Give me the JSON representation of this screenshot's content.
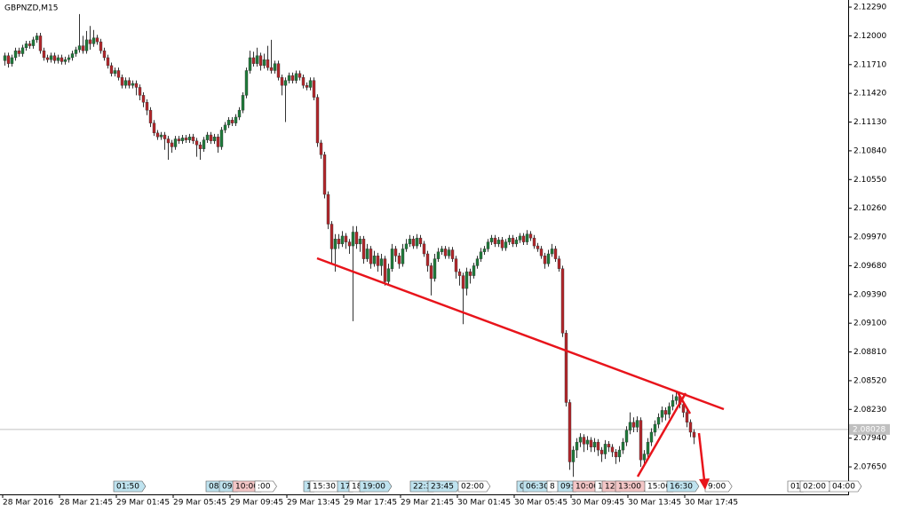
{
  "chart_data": {
    "type": "candlestick",
    "title": "GBPNZD,M15",
    "up_color": "#1e7b3a",
    "down_color": "#b3262a",
    "ylim": [
      2.07525,
      2.12353
    ],
    "yticks": [
      {
        "value": 2.1229,
        "label": "2.12290"
      },
      {
        "value": 2.12,
        "label": "2.12000"
      },
      {
        "value": 2.1171,
        "label": "2.11710"
      },
      {
        "value": 2.1142,
        "label": "2.11420"
      },
      {
        "value": 2.1113,
        "label": "2.11130"
      },
      {
        "value": 2.1084,
        "label": "2.10840"
      },
      {
        "value": 2.1055,
        "label": "2.10550"
      },
      {
        "value": 2.1026,
        "label": "2.10260"
      },
      {
        "value": 2.0997,
        "label": "2.09970"
      },
      {
        "value": 2.0968,
        "label": "2.09680"
      },
      {
        "value": 2.0939,
        "label": "2.09390"
      },
      {
        "value": 2.091,
        "label": "2.09100"
      },
      {
        "value": 2.0881,
        "label": "2.08810"
      },
      {
        "value": 2.0852,
        "label": "2.08520"
      },
      {
        "value": 2.0823,
        "label": "2.08230"
      },
      {
        "value": 2.0794,
        "label": "2.07940"
      },
      {
        "value": 2.0765,
        "label": "2.07650"
      }
    ],
    "xticks": [
      {
        "value": 0,
        "label": "28 Mar 2016"
      },
      {
        "value": 16,
        "label": "28 Mar 21:45"
      },
      {
        "value": 32,
        "label": "29 Mar 01:45"
      },
      {
        "value": 48,
        "label": "29 Mar 05:45"
      },
      {
        "value": 64,
        "label": "29 Mar 09:45"
      },
      {
        "value": 80,
        "label": "29 Mar 13:45"
      },
      {
        "value": 96,
        "label": "29 Mar 17:45"
      },
      {
        "value": 112,
        "label": "29 Mar 21:45"
      },
      {
        "value": 128,
        "label": "30 Mar 01:45"
      },
      {
        "value": 144,
        "label": "30 Mar 05:45"
      },
      {
        "value": 160,
        "label": "30 Mar 09:45"
      },
      {
        "value": 176,
        "label": "30 Mar 13:45"
      },
      {
        "value": 192,
        "label": "30 Mar 17:45"
      }
    ],
    "current_price": {
      "value": 2.08028,
      "label": "2.08028"
    },
    "event_tags": [
      {
        "label": "01:50",
        "color": "#bfe3ef"
      },
      {
        "label": "08:",
        "color": "#bfe3ef"
      },
      {
        "label": "09:",
        "color": "#bfe3ef"
      },
      {
        "label": "10:00",
        "color": "#f3c6c6"
      },
      {
        "label": ":00",
        "color": "#ffffff"
      },
      {
        "label": "1",
        "color": "#bfe3ef"
      },
      {
        "label": "15:30",
        "color": "#ffffff"
      },
      {
        "label": "17",
        "color": "#bfe3ef"
      },
      {
        "label": "18",
        "color": "#ffffff"
      },
      {
        "label": "19:00",
        "color": "#bfe3ef"
      },
      {
        "label": "22:3",
        "color": "#bfe3ef"
      },
      {
        "label": "23:45",
        "color": "#bfe3ef"
      },
      {
        "label": "02:00",
        "color": "#ffffff"
      },
      {
        "label": "0",
        "color": "#bfe3ef"
      },
      {
        "label": "06:30",
        "color": "#bfe3ef"
      },
      {
        "label": "8",
        "color": "#ffffff"
      },
      {
        "label": "09:",
        "color": "#bfe3ef"
      },
      {
        "label": "10:00",
        "color": "#f3c6c6"
      },
      {
        "label": "1",
        "color": "#ffffff"
      },
      {
        "label": "12:",
        "color": "#f3c6c6"
      },
      {
        "label": "13:00",
        "color": "#f3c6c6"
      },
      {
        "label": "15:00",
        "color": "#ffffff"
      },
      {
        "label": "16:30",
        "color": "#bfe3ef"
      },
      {
        "label": "9:00",
        "color": "#ffffff"
      },
      {
        "label": "01",
        "color": "#ffffff"
      },
      {
        "label": "02:00",
        "color": "#ffffff"
      },
      {
        "label": "04:00",
        "color": "#ffffff"
      }
    ],
    "candles": [
      [
        2.1175,
        2.1183,
        2.117,
        2.118
      ],
      [
        2.118,
        2.1183,
        2.1168,
        2.1172
      ],
      [
        2.1172,
        2.1181,
        2.1169,
        2.1178
      ],
      [
        2.1178,
        2.1188,
        2.1175,
        2.1185
      ],
      [
        2.1185,
        2.1188,
        2.1179,
        2.1182
      ],
      [
        2.1182,
        2.1191,
        2.1179,
        2.1188
      ],
      [
        2.1188,
        2.1195,
        2.1185,
        2.1192
      ],
      [
        2.1192,
        2.1195,
        2.1187,
        2.119
      ],
      [
        2.119,
        2.1199,
        2.1187,
        2.1196
      ],
      [
        2.1196,
        2.1203,
        2.1193,
        2.12
      ],
      [
        2.12,
        2.1203,
        2.1182,
        2.1185
      ],
      [
        2.1185,
        2.1188,
        2.1175,
        2.1178
      ],
      [
        2.1178,
        2.1181,
        2.1173,
        2.1176
      ],
      [
        2.1176,
        2.1183,
        2.1173,
        2.118
      ],
      [
        2.118,
        2.1183,
        2.1172,
        2.1175
      ],
      [
        2.1175,
        2.1181,
        2.1172,
        2.1178
      ],
      [
        2.1178,
        2.1181,
        2.1171,
        2.1174
      ],
      [
        2.1174,
        2.1179,
        2.1171,
        2.1176
      ],
      [
        2.1176,
        2.1181,
        2.1173,
        2.1178
      ],
      [
        2.1178,
        2.1185,
        2.1175,
        2.1182
      ],
      [
        2.1182,
        2.1189,
        2.1179,
        2.1186
      ],
      [
        2.1186,
        2.1222,
        2.1183,
        2.119
      ],
      [
        2.119,
        2.12,
        2.1182,
        2.1185
      ],
      [
        2.1185,
        2.1205,
        2.1182,
        2.1196
      ],
      [
        2.1196,
        2.121,
        2.1186,
        2.1192
      ],
      [
        2.1192,
        2.1206,
        2.1189,
        2.1198
      ],
      [
        2.1198,
        2.1201,
        2.1191,
        2.1194
      ],
      [
        2.1194,
        2.1197,
        2.1182,
        2.1185
      ],
      [
        2.1185,
        2.1188,
        2.1175,
        2.1178
      ],
      [
        2.1178,
        2.1181,
        2.1167,
        2.117
      ],
      [
        2.117,
        2.1173,
        2.1159,
        2.1162
      ],
      [
        2.1162,
        2.1168,
        2.1159,
        2.1165
      ],
      [
        2.1165,
        2.1168,
        2.1155,
        2.1158
      ],
      [
        2.1158,
        2.1161,
        2.1147,
        2.115
      ],
      [
        2.115,
        2.1158,
        2.1147,
        2.1155
      ],
      [
        2.1155,
        2.1158,
        2.1147,
        2.115
      ],
      [
        2.115,
        2.1155,
        2.1147,
        2.1152
      ],
      [
        2.1152,
        2.1155,
        2.114,
        2.1148
      ],
      [
        2.1148,
        2.1151,
        2.1135,
        2.114
      ],
      [
        2.114,
        2.1143,
        2.1128,
        2.1133
      ],
      [
        2.1133,
        2.1136,
        2.112,
        2.1125
      ],
      [
        2.1125,
        2.1128,
        2.1108,
        2.1112
      ],
      [
        2.1112,
        2.1115,
        2.1099,
        2.1102
      ],
      [
        2.1102,
        2.1105,
        2.1095,
        2.1098
      ],
      [
        2.1098,
        2.1103,
        2.1095,
        2.11
      ],
      [
        2.11,
        2.1103,
        2.1085,
        2.1096
      ],
      [
        2.1096,
        2.1099,
        2.1075,
        2.1092
      ],
      [
        2.1092,
        2.1095,
        2.1082,
        2.1088
      ],
      [
        2.1088,
        2.1099,
        2.1085,
        2.1096
      ],
      [
        2.1096,
        2.1099,
        2.1091,
        2.1094
      ],
      [
        2.1094,
        2.11,
        2.1091,
        2.1097
      ],
      [
        2.1097,
        2.11,
        2.1092,
        2.1095
      ],
      [
        2.1095,
        2.1101,
        2.1092,
        2.1098
      ],
      [
        2.1098,
        2.1101,
        2.1091,
        2.1094
      ],
      [
        2.1094,
        2.1097,
        2.1078,
        2.109
      ],
      [
        2.109,
        2.1093,
        2.1075,
        2.1086
      ],
      [
        2.1086,
        2.1098,
        2.1083,
        2.1095
      ],
      [
        2.1095,
        2.1103,
        2.1092,
        2.11
      ],
      [
        2.11,
        2.1103,
        2.1091,
        2.1094
      ],
      [
        2.1094,
        2.1101,
        2.1091,
        2.1098
      ],
      [
        2.1098,
        2.1101,
        2.1082,
        2.1088
      ],
      [
        2.1088,
        2.1108,
        2.1085,
        2.1105
      ],
      [
        2.1105,
        2.1113,
        2.1102,
        2.111
      ],
      [
        2.111,
        2.1118,
        2.1107,
        2.1115
      ],
      [
        2.1115,
        2.1118,
        2.1109,
        2.1112
      ],
      [
        2.1112,
        2.1121,
        2.1109,
        2.1118
      ],
      [
        2.1118,
        2.1128,
        2.1115,
        2.1125
      ],
      [
        2.1125,
        2.1143,
        2.1122,
        2.114
      ],
      [
        2.114,
        2.1168,
        2.1137,
        2.1165
      ],
      [
        2.1165,
        2.1185,
        2.1162,
        2.1178
      ],
      [
        2.1178,
        2.1184,
        2.1169,
        2.1172
      ],
      [
        2.1172,
        2.1188,
        2.1169,
        2.118
      ],
      [
        2.118,
        2.1183,
        2.1165,
        2.117
      ],
      [
        2.117,
        2.1182,
        2.1167,
        2.1176
      ],
      [
        2.1176,
        2.119,
        2.1165,
        2.1168
      ],
      [
        2.1168,
        2.1196,
        2.1162,
        2.1165
      ],
      [
        2.1165,
        2.1175,
        2.1162,
        2.1172
      ],
      [
        2.1172,
        2.1175,
        2.1155,
        2.1158
      ],
      [
        2.1158,
        2.1161,
        2.114,
        2.115
      ],
      [
        2.115,
        2.1158,
        2.1113,
        2.1155
      ],
      [
        2.1155,
        2.1163,
        2.1152,
        2.116
      ],
      [
        2.116,
        2.1163,
        2.1152,
        2.1155
      ],
      [
        2.1155,
        2.1165,
        2.1152,
        2.1162
      ],
      [
        2.1162,
        2.1165,
        2.1155,
        2.1158
      ],
      [
        2.1158,
        2.1161,
        2.1147,
        2.115
      ],
      [
        2.115,
        2.1153,
        2.1145,
        2.1148
      ],
      [
        2.1148,
        2.1158,
        2.1145,
        2.1155
      ],
      [
        2.1155,
        2.1158,
        2.1135,
        2.1138
      ],
      [
        2.1138,
        2.1141,
        2.1088,
        2.1092
      ],
      [
        2.1092,
        2.1095,
        2.1076,
        2.108
      ],
      [
        2.108,
        2.1083,
        2.1036,
        2.104
      ],
      [
        2.104,
        2.1043,
        2.1005,
        2.101
      ],
      [
        2.101,
        2.1013,
        2.097,
        2.0985
      ],
      [
        2.0985,
        2.1,
        2.0962,
        2.0995
      ],
      [
        2.0995,
        2.1,
        2.0985,
        2.099
      ],
      [
        2.099,
        2.1003,
        2.0987,
        2.0998
      ],
      [
        2.0998,
        2.1001,
        2.0985,
        2.0992
      ],
      [
        2.0992,
        2.0995,
        2.098,
        2.0988
      ],
      [
        2.0988,
        2.1008,
        2.0912,
        2.1002
      ],
      [
        2.1002,
        2.1008,
        2.0985,
        2.099
      ],
      [
        2.099,
        2.0998,
        2.0982,
        2.0995
      ],
      [
        2.0995,
        2.0998,
        2.097,
        2.0975
      ],
      [
        2.0975,
        2.099,
        2.0972,
        2.0985
      ],
      [
        2.0985,
        2.0988,
        2.0965,
        2.097
      ],
      [
        2.097,
        2.0983,
        2.0967,
        2.0978
      ],
      [
        2.0978,
        2.0981,
        2.0962,
        2.0968
      ],
      [
        2.0968,
        2.098,
        2.0958,
        2.0975
      ],
      [
        2.0975,
        2.0978,
        2.0948,
        2.0952
      ],
      [
        2.0952,
        2.097,
        2.0949,
        2.0965
      ],
      [
        2.0965,
        2.099,
        2.0962,
        2.0985
      ],
      [
        2.0985,
        2.0988,
        2.0972,
        2.0978
      ],
      [
        2.0978,
        2.0981,
        2.0965,
        2.097
      ],
      [
        2.097,
        2.099,
        2.0967,
        2.0985
      ],
      [
        2.0985,
        2.0995,
        2.0982,
        2.099
      ],
      [
        2.099,
        2.0999,
        2.0987,
        2.0995
      ],
      [
        2.0995,
        2.0998,
        2.0985,
        2.0988
      ],
      [
        2.0988,
        2.1,
        2.0985,
        2.0996
      ],
      [
        2.0996,
        2.0999,
        2.0987,
        2.099
      ],
      [
        2.099,
        2.0993,
        2.0977,
        2.098
      ],
      [
        2.098,
        2.0983,
        2.0962,
        2.0968
      ],
      [
        2.0968,
        2.0971,
        2.0938,
        2.0955
      ],
      [
        2.0955,
        2.098,
        2.0952,
        2.0975
      ],
      [
        2.0975,
        2.0986,
        2.0972,
        2.0982
      ],
      [
        2.0982,
        2.0988,
        2.0979,
        2.0985
      ],
      [
        2.0985,
        2.0988,
        2.0975,
        2.0978
      ],
      [
        2.0978,
        2.0987,
        2.0975,
        2.0984
      ],
      [
        2.0984,
        2.0987,
        2.0972,
        2.0975
      ],
      [
        2.0975,
        2.0978,
        2.0955,
        2.0962
      ],
      [
        2.0962,
        2.0965,
        2.0948,
        2.0958
      ],
      [
        2.0958,
        2.0961,
        2.0909,
        2.0945
      ],
      [
        2.0945,
        2.0966,
        2.0938,
        2.0962
      ],
      [
        2.0962,
        2.0965,
        2.095,
        2.0958
      ],
      [
        2.0958,
        2.0971,
        2.0955,
        2.0968
      ],
      [
        2.0968,
        2.0978,
        2.0965,
        2.0975
      ],
      [
        2.0975,
        2.0986,
        2.0972,
        2.0982
      ],
      [
        2.0982,
        2.0988,
        2.0979,
        2.0985
      ],
      [
        2.0985,
        2.0995,
        2.0982,
        2.0992
      ],
      [
        2.0992,
        2.0999,
        2.0989,
        2.0996
      ],
      [
        2.0996,
        2.0999,
        2.0987,
        2.099
      ],
      [
        2.099,
        2.0997,
        2.0987,
        2.0994
      ],
      [
        2.0994,
        2.0997,
        2.0983,
        2.0986
      ],
      [
        2.0986,
        2.0995,
        2.0983,
        2.0992
      ],
      [
        2.0992,
        2.0999,
        2.0989,
        2.0996
      ],
      [
        2.0996,
        2.0999,
        2.0987,
        2.099
      ],
      [
        2.099,
        2.0997,
        2.0987,
        2.0994
      ],
      [
        2.0994,
        2.1001,
        2.0991,
        2.0998
      ],
      [
        2.0998,
        2.1001,
        2.0989,
        2.0992
      ],
      [
        2.0992,
        2.1004,
        2.0989,
        2.1
      ],
      [
        2.1,
        2.1003,
        2.0993,
        2.0996
      ],
      [
        2.0996,
        2.0999,
        2.0985,
        2.0988
      ],
      [
        2.0988,
        2.0991,
        2.0982,
        2.0985
      ],
      [
        2.0985,
        2.0988,
        2.0975,
        2.0978
      ],
      [
        2.0978,
        2.0981,
        2.0965,
        2.097
      ],
      [
        2.097,
        2.0984,
        2.0967,
        2.098
      ],
      [
        2.098,
        2.099,
        2.0977,
        2.0985
      ],
      [
        2.0985,
        2.0988,
        2.0972,
        2.0975
      ],
      [
        2.0975,
        2.0978,
        2.0962,
        2.0965
      ],
      [
        2.0965,
        2.0968,
        2.0896,
        2.09
      ],
      [
        2.09,
        2.0903,
        2.0826,
        2.083
      ],
      [
        2.083,
        2.0833,
        2.0762,
        2.077
      ],
      [
        2.077,
        2.0786,
        2.0755,
        2.0782
      ],
      [
        2.0782,
        2.0794,
        2.0774,
        2.079
      ],
      [
        2.079,
        2.0799,
        2.0785,
        2.0795
      ],
      [
        2.0795,
        2.0798,
        2.078,
        2.0788
      ],
      [
        2.0788,
        2.0796,
        2.0782,
        2.0792
      ],
      [
        2.0792,
        2.0795,
        2.078,
        2.0785
      ],
      [
        2.0785,
        2.0794,
        2.078,
        2.079
      ],
      [
        2.079,
        2.0793,
        2.0776,
        2.0782
      ],
      [
        2.0782,
        2.0785,
        2.077,
        2.0778
      ],
      [
        2.0778,
        2.0792,
        2.0773,
        2.0788
      ],
      [
        2.0788,
        2.0791,
        2.078,
        2.0785
      ],
      [
        2.0785,
        2.0788,
        2.0775,
        2.078
      ],
      [
        2.078,
        2.0783,
        2.0768,
        2.0775
      ],
      [
        2.0775,
        2.0786,
        2.077,
        2.0782
      ],
      [
        2.0782,
        2.0794,
        2.0778,
        2.079
      ],
      [
        2.079,
        2.0806,
        2.0786,
        2.0802
      ],
      [
        2.0802,
        2.082,
        2.0798,
        2.081
      ],
      [
        2.081,
        2.0815,
        2.08,
        2.0805
      ],
      [
        2.0805,
        2.0816,
        2.08,
        2.0812
      ],
      [
        2.0812,
        2.0815,
        2.0765,
        2.0772
      ],
      [
        2.0772,
        2.0782,
        2.0768,
        2.0778
      ],
      [
        2.0778,
        2.0794,
        2.0774,
        2.079
      ],
      [
        2.079,
        2.0804,
        2.0786,
        2.08
      ],
      [
        2.08,
        2.0812,
        2.0796,
        2.0808
      ],
      [
        2.0808,
        2.0819,
        2.0804,
        2.0815
      ],
      [
        2.0815,
        2.0826,
        2.081,
        2.0822
      ],
      [
        2.0822,
        2.0825,
        2.0812,
        2.0818
      ],
      [
        2.0818,
        2.083,
        2.0814,
        2.0826
      ],
      [
        2.0826,
        2.0838,
        2.0822,
        2.0832
      ],
      [
        2.0832,
        2.0842,
        2.0828,
        2.0836
      ],
      [
        2.0836,
        2.0839,
        2.0824,
        2.0828
      ],
      [
        2.0828,
        2.0831,
        2.0815,
        2.082
      ],
      [
        2.082,
        2.0823,
        2.0805,
        2.081
      ],
      [
        2.081,
        2.0813,
        2.0795,
        2.08
      ],
      [
        2.08,
        2.0803,
        2.0788,
        2.0795
      ]
    ]
  }
}
